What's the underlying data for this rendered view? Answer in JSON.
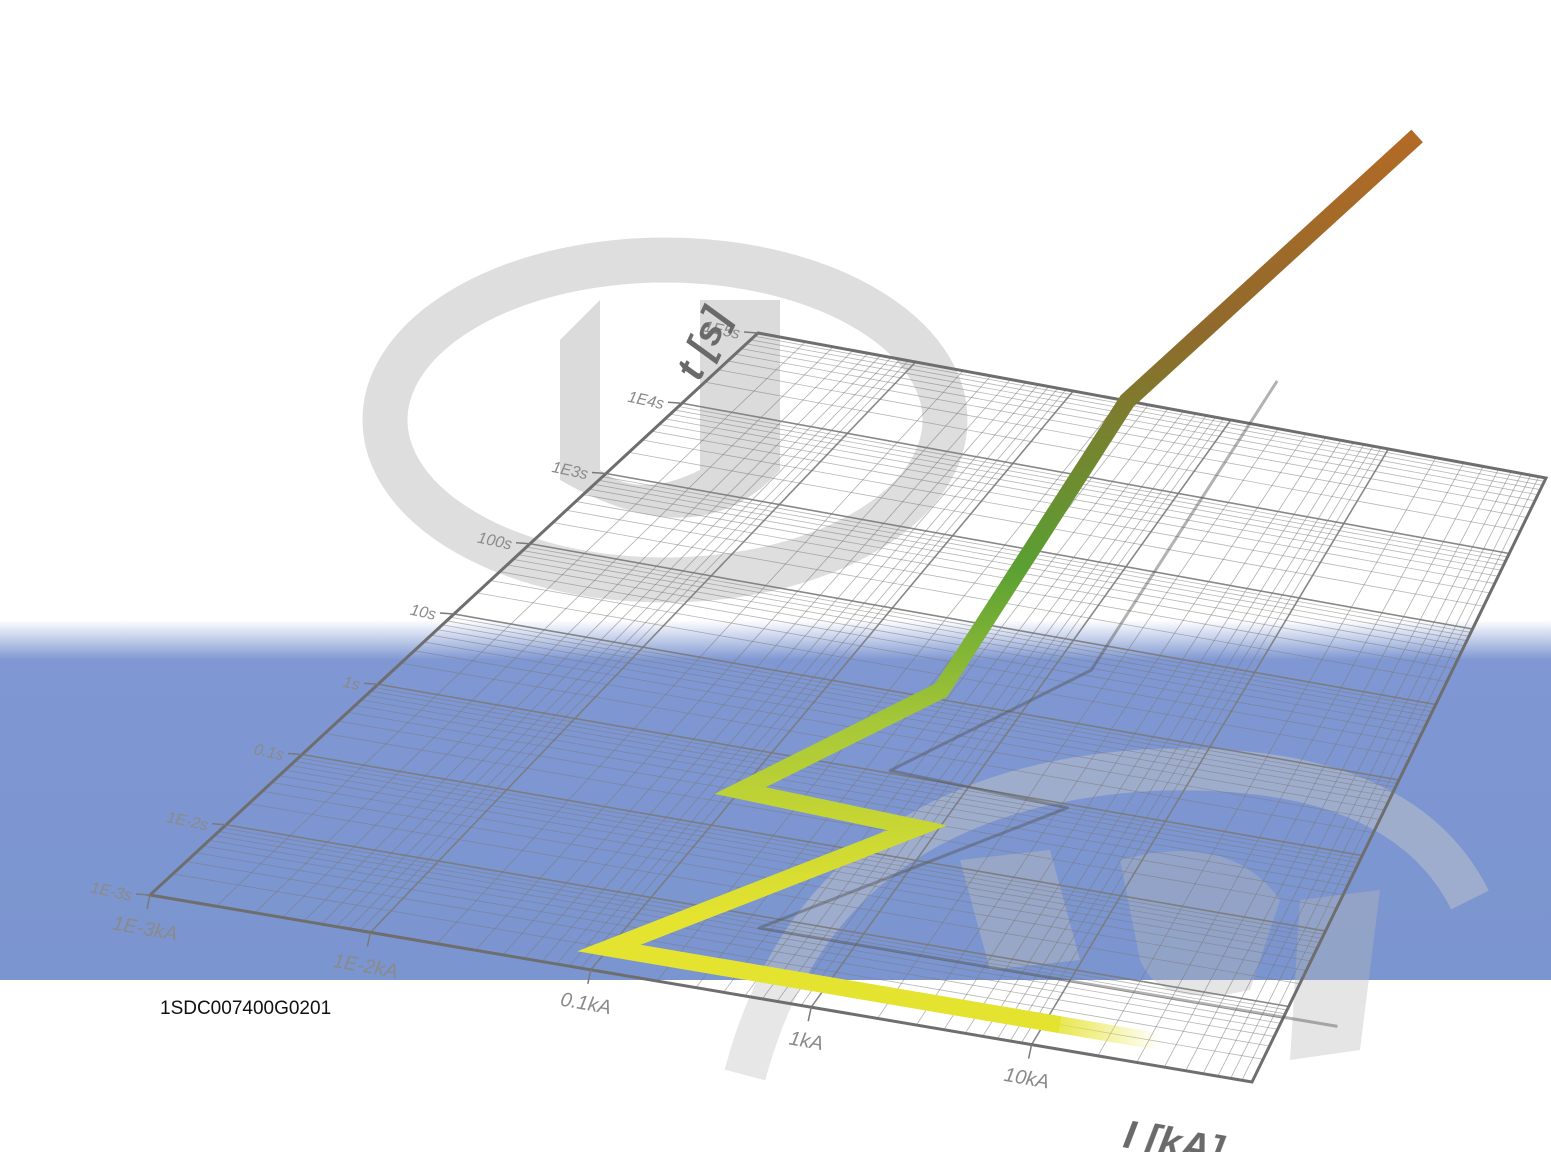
{
  "figure_code": "1SDC007400G0201",
  "colors": {
    "band": "#7b95d0",
    "grid": "#7a7a7a",
    "frame": "#6e6e6e",
    "watermark": "#d2d2d2",
    "curve_top": "#b86a25",
    "curve_mid": "#5aa033",
    "curve_bottom": "#e4e330"
  },
  "chart_data": {
    "type": "line",
    "title": "",
    "xlabel": "I [kA]",
    "ylabel": "t [s]",
    "x_scale": "log",
    "y_scale": "log",
    "grid": true,
    "xlim": [
      0.001,
      100
    ],
    "ylim": [
      0.001,
      100000
    ],
    "x_ticks": [
      {
        "value": 0.001,
        "label": "1E-3kA"
      },
      {
        "value": 0.01,
        "label": "1E-2kA"
      },
      {
        "value": 0.1,
        "label": "0.1kA"
      },
      {
        "value": 1,
        "label": "1kA"
      },
      {
        "value": 10,
        "label": "10kA"
      }
    ],
    "y_ticks": [
      {
        "value": 0.001,
        "label": "1E-3s"
      },
      {
        "value": 0.01,
        "label": "1E-2s"
      },
      {
        "value": 0.1,
        "label": "0.1s"
      },
      {
        "value": 1,
        "label": "1s"
      },
      {
        "value": 10,
        "label": "10s"
      },
      {
        "value": 100,
        "label": "100s"
      },
      {
        "value": 1000,
        "label": "1E3s"
      },
      {
        "value": 10000,
        "label": "1E4s"
      },
      {
        "value": 100000,
        "label": "1E5s"
      }
    ],
    "series": [
      {
        "points": [
          [
            0.22,
            100000
          ],
          [
            0.35,
            13
          ],
          [
            0.1,
            0.3
          ],
          [
            0.8,
            0.25
          ],
          [
            0.1,
            0.002
          ],
          [
            45,
            0.002
          ]
        ]
      }
    ]
  }
}
